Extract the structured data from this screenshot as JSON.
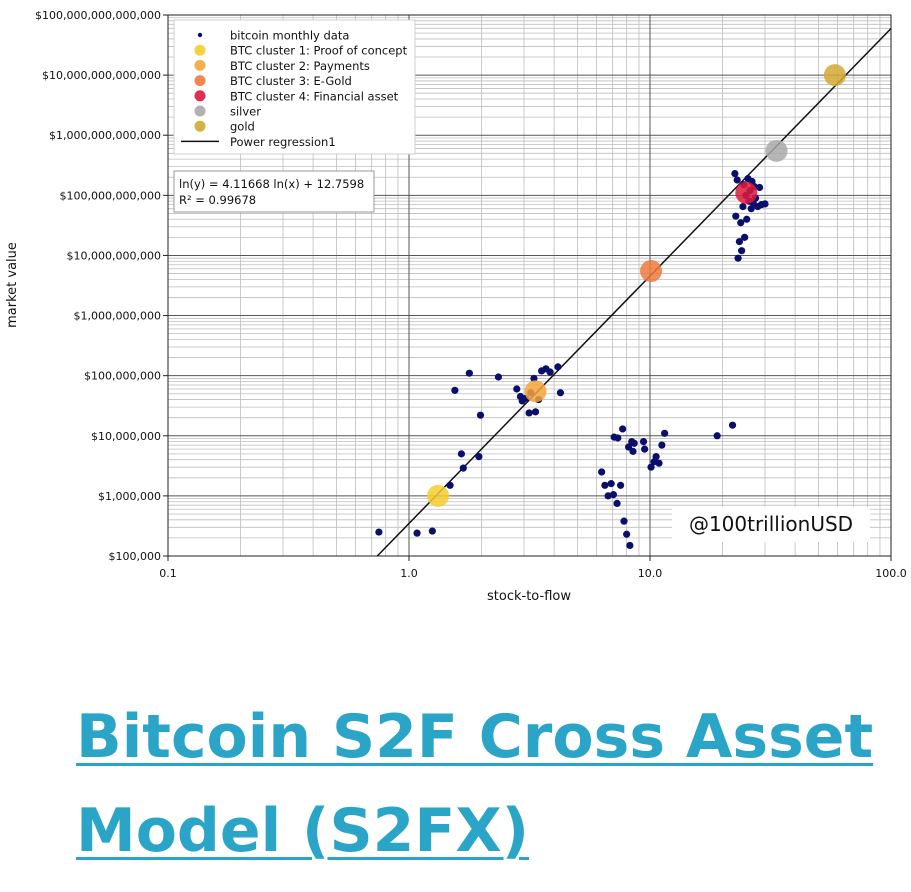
{
  "chart_data": {
    "type": "scatter",
    "xscale": "log",
    "yscale": "log",
    "xlim": [
      0.1,
      100.0
    ],
    "ylim": [
      100000,
      100000000000000
    ],
    "xlabel": "stock-to-flow",
    "ylabel": "market value",
    "grid": true,
    "legend_position": "top-left",
    "xtick_labels": [
      "0.1",
      "1.0",
      "10.0",
      "100.0"
    ],
    "ytick_labels": [
      "$100,000",
      "$1,000,000",
      "$10,000,000",
      "$100,000,000",
      "$1,000,000,000",
      "$10,000,000,000",
      "$100,000,000,000",
      "$1,000,000,000,000",
      "$10,000,000,000,000",
      "$100,000,000,000,000"
    ],
    "series": [
      {
        "name": "bitcoin monthly data",
        "color": "#0b0e6b",
        "marker": "small-dot",
        "points": [
          [
            0.75,
            250000
          ],
          [
            1.08,
            240000
          ],
          [
            1.25,
            260000
          ],
          [
            1.48,
            1500000
          ],
          [
            1.65,
            5000000
          ],
          [
            1.68,
            2900000
          ],
          [
            1.95,
            4500000
          ],
          [
            1.98,
            22000000
          ],
          [
            1.55,
            57000000
          ],
          [
            1.78,
            110000000
          ],
          [
            2.35,
            95000000
          ],
          [
            2.8,
            60000000
          ],
          [
            2.9,
            45000000
          ],
          [
            2.95,
            38000000
          ],
          [
            3.05,
            42000000
          ],
          [
            3.15,
            24000000
          ],
          [
            3.2,
            52000000
          ],
          [
            3.3,
            90000000
          ],
          [
            3.35,
            25000000
          ],
          [
            3.45,
            40000000
          ],
          [
            3.55,
            120000000
          ],
          [
            3.7,
            130000000
          ],
          [
            3.85,
            115000000
          ],
          [
            4.15,
            140000000
          ],
          [
            4.25,
            52000000
          ],
          [
            6.3,
            2500000
          ],
          [
            6.5,
            1500000
          ],
          [
            6.7,
            1000000
          ],
          [
            6.9,
            1600000
          ],
          [
            7.05,
            1050000
          ],
          [
            7.1,
            9500000
          ],
          [
            7.3,
            750000
          ],
          [
            7.35,
            9200000
          ],
          [
            7.55,
            1500000
          ],
          [
            7.7,
            13000000
          ],
          [
            7.8,
            380000
          ],
          [
            8.0,
            230000
          ],
          [
            8.15,
            6500000
          ],
          [
            8.25,
            150000
          ],
          [
            8.4,
            8000000
          ],
          [
            8.5,
            5500000
          ],
          [
            8.6,
            7500000
          ],
          [
            9.4,
            8000000
          ],
          [
            9.5,
            6000000
          ],
          [
            10.1,
            3000000
          ],
          [
            10.4,
            3700000
          ],
          [
            10.6,
            4500000
          ],
          [
            10.9,
            3500000
          ],
          [
            11.2,
            7000000
          ],
          [
            11.5,
            11000000
          ],
          [
            19.0,
            10000000
          ],
          [
            22.0,
            15000000
          ],
          [
            22.5,
            230000000000
          ],
          [
            22.7,
            45000000000
          ],
          [
            23.0,
            180000000000
          ],
          [
            23.2,
            9000000000
          ],
          [
            23.5,
            17000000000
          ],
          [
            23.8,
            35000000000
          ],
          [
            24.0,
            12000000000
          ],
          [
            24.3,
            65000000000
          ],
          [
            24.5,
            150000000000
          ],
          [
            24.7,
            20000000000
          ],
          [
            25.0,
            100000000000
          ],
          [
            25.2,
            40000000000
          ],
          [
            25.5,
            190000000000
          ],
          [
            25.8,
            80000000000
          ],
          [
            26.0,
            120000000000
          ],
          [
            26.3,
            60000000000
          ],
          [
            26.5,
            170000000000
          ],
          [
            26.8,
            75000000000
          ],
          [
            27.1,
            140000000000
          ],
          [
            27.4,
            90000000000
          ],
          [
            28.0,
            65000000000
          ],
          [
            28.5,
            135000000000
          ],
          [
            29.0,
            70000000000
          ],
          [
            30.0,
            72000000000
          ]
        ]
      },
      {
        "name": "BTC cluster 1: Proof of concept",
        "color": "#f5cc2e",
        "marker": "big-dot",
        "points": [
          [
            1.32,
            1000000
          ]
        ]
      },
      {
        "name": "BTC cluster 2: Payments",
        "color": "#f5a53a",
        "marker": "big-dot",
        "points": [
          [
            3.35,
            55000000
          ]
        ]
      },
      {
        "name": "BTC cluster 3: E-Gold",
        "color": "#ee7a3c",
        "marker": "big-dot",
        "points": [
          [
            10.1,
            5500000000
          ]
        ]
      },
      {
        "name": "BTC cluster 4: Financial asset",
        "color": "#de1a3c",
        "marker": "big-dot",
        "points": [
          [
            25.1,
            110000000000
          ]
        ]
      },
      {
        "name": "silver",
        "color": "#a9a9a9",
        "marker": "big-dot",
        "points": [
          [
            33.5,
            550000000000
          ]
        ]
      },
      {
        "name": "gold",
        "color": "#d2a933",
        "marker": "big-dot",
        "points": [
          [
            58.5,
            10000000000000
          ]
        ]
      }
    ],
    "regression": {
      "name": "Power regression1",
      "color": "#111111",
      "a": 4.11668,
      "b": 12.7598,
      "equation_line1": "ln(y) = 4.11668 ln(x) + 12.7598",
      "equation_line2": "R² = 0.99678"
    },
    "watermark": "@100trillionUSD"
  },
  "page": {
    "title": "Bitcoin S2F Cross Asset Model (S2FX)",
    "title_color": "#2aa5c8"
  }
}
